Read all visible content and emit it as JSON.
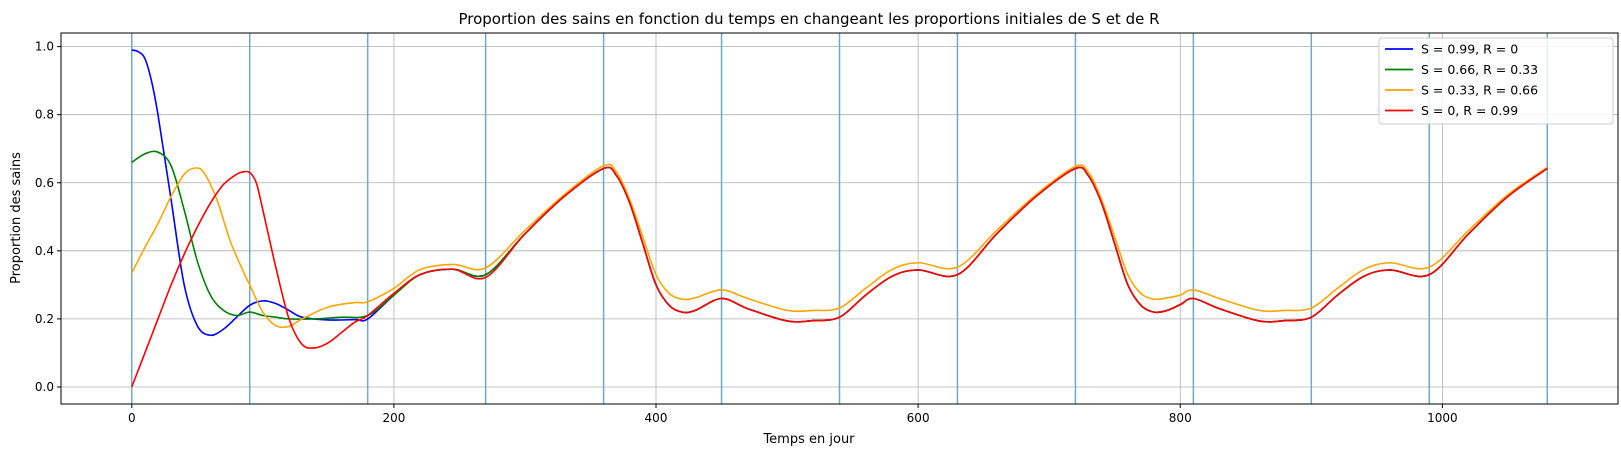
{
  "chart_data": {
    "type": "line",
    "title": "Proportion des sains en fonction du temps en changeant les proportions initiales de S et de R",
    "xlabel": "Temps en jour",
    "ylabel": "Proportion des sains",
    "xlim": [
      -54,
      1134
    ],
    "ylim": [
      -0.05,
      1.04
    ],
    "xticks": [
      0,
      200,
      400,
      600,
      800,
      1000
    ],
    "yticks": [
      0.0,
      0.2,
      0.4,
      0.6,
      0.8,
      1.0
    ],
    "xtick_labels": [
      "0",
      "200",
      "400",
      "600",
      "800",
      "1000"
    ],
    "ytick_labels": [
      "0.0",
      "0.2",
      "0.4",
      "0.6",
      "0.8",
      "1.0"
    ],
    "vlines": [
      0,
      90,
      180,
      270,
      360,
      450,
      540,
      630,
      720,
      810,
      900,
      990,
      1080
    ],
    "vline_color": "#6fa8cc",
    "grid": true,
    "legend_position": "upper right",
    "series": [
      {
        "name": "S = 0.99, R = 0",
        "color": "#0000ff",
        "x": [
          0,
          5,
          10,
          15,
          20,
          30,
          40,
          50,
          60,
          70,
          80,
          90,
          100,
          110,
          120,
          130,
          150,
          170,
          180,
          200,
          220,
          245,
          270,
          300,
          330,
          360,
          370,
          380,
          390,
          400,
          410,
          420,
          430,
          450,
          470,
          500,
          520,
          540,
          560,
          580,
          600,
          630,
          660,
          690,
          720,
          730,
          740,
          750,
          760,
          770,
          780,
          790,
          800,
          810,
          830,
          860,
          880,
          900,
          920,
          940,
          960,
          990,
          1020,
          1050,
          1080
        ],
        "y": [
          0.99,
          0.985,
          0.965,
          0.9,
          0.8,
          0.55,
          0.3,
          0.18,
          0.152,
          0.17,
          0.205,
          0.24,
          0.253,
          0.245,
          0.225,
          0.205,
          0.197,
          0.198,
          0.2,
          0.27,
          0.33,
          0.346,
          0.33,
          0.45,
          0.56,
          0.642,
          0.62,
          0.54,
          0.42,
          0.3,
          0.24,
          0.22,
          0.225,
          0.26,
          0.23,
          0.194,
          0.195,
          0.205,
          0.27,
          0.325,
          0.344,
          0.33,
          0.45,
          0.56,
          0.642,
          0.62,
          0.54,
          0.42,
          0.3,
          0.24,
          0.22,
          0.225,
          0.242,
          0.26,
          0.23,
          0.194,
          0.195,
          0.205,
          0.27,
          0.325,
          0.344,
          0.33,
          0.45,
          0.56,
          0.642
        ]
      },
      {
        "name": "S = 0.66, R = 0.33",
        "color": "#008000",
        "x": [
          0,
          10,
          20,
          30,
          40,
          50,
          60,
          70,
          80,
          90,
          100,
          110,
          120,
          140,
          160,
          180,
          200,
          220,
          245,
          270,
          300,
          330,
          360,
          370,
          380,
          390,
          400,
          410,
          420,
          430,
          450,
          470,
          500,
          520,
          540,
          560,
          580,
          600,
          630,
          660,
          690,
          720,
          730,
          740,
          750,
          760,
          770,
          780,
          790,
          800,
          810,
          830,
          860,
          880,
          900,
          920,
          940,
          960,
          990,
          1020,
          1050,
          1080
        ],
        "y": [
          0.66,
          0.685,
          0.69,
          0.65,
          0.52,
          0.37,
          0.27,
          0.225,
          0.21,
          0.22,
          0.21,
          0.205,
          0.2,
          0.2,
          0.205,
          0.21,
          0.27,
          0.33,
          0.346,
          0.33,
          0.45,
          0.56,
          0.642,
          0.62,
          0.54,
          0.42,
          0.3,
          0.24,
          0.22,
          0.225,
          0.26,
          0.23,
          0.194,
          0.195,
          0.205,
          0.27,
          0.325,
          0.344,
          0.33,
          0.45,
          0.56,
          0.642,
          0.62,
          0.54,
          0.42,
          0.3,
          0.24,
          0.22,
          0.225,
          0.242,
          0.26,
          0.23,
          0.194,
          0.195,
          0.205,
          0.27,
          0.325,
          0.344,
          0.33,
          0.45,
          0.56,
          0.642
        ]
      },
      {
        "name": "S = 0.33, R = 0.66",
        "color": "#ffa500",
        "x": [
          0,
          10,
          20,
          30,
          40,
          48,
          55,
          65,
          75,
          85,
          90,
          100,
          110,
          120,
          130,
          150,
          170,
          180,
          200,
          220,
          245,
          270,
          300,
          330,
          360,
          370,
          380,
          390,
          400,
          410,
          420,
          430,
          450,
          470,
          500,
          520,
          540,
          560,
          580,
          600,
          630,
          660,
          690,
          720,
          730,
          740,
          750,
          760,
          770,
          780,
          790,
          800,
          810,
          830,
          860,
          880,
          900,
          920,
          940,
          960,
          990,
          1020,
          1050,
          1080
        ],
        "y": [
          0.335,
          0.41,
          0.48,
          0.56,
          0.625,
          0.643,
          0.63,
          0.55,
          0.43,
          0.34,
          0.3,
          0.22,
          0.18,
          0.178,
          0.2,
          0.235,
          0.248,
          0.25,
          0.29,
          0.345,
          0.36,
          0.35,
          0.46,
          0.565,
          0.65,
          0.63,
          0.55,
          0.44,
          0.33,
          0.275,
          0.258,
          0.262,
          0.285,
          0.26,
          0.225,
          0.225,
          0.232,
          0.29,
          0.345,
          0.365,
          0.352,
          0.46,
          0.565,
          0.648,
          0.63,
          0.55,
          0.44,
          0.33,
          0.275,
          0.258,
          0.262,
          0.27,
          0.285,
          0.26,
          0.225,
          0.225,
          0.232,
          0.29,
          0.345,
          0.365,
          0.352,
          0.46,
          0.565,
          0.645
        ]
      },
      {
        "name": "S = 0, R = 0.99",
        "color": "#ff0000",
        "x": [
          0,
          10,
          20,
          30,
          40,
          50,
          60,
          70,
          80,
          85,
          90,
          95,
          100,
          110,
          120,
          130,
          140,
          150,
          160,
          170,
          180,
          200,
          220,
          245,
          270,
          300,
          330,
          360,
          370,
          380,
          390,
          400,
          410,
          420,
          430,
          450,
          470,
          500,
          520,
          540,
          560,
          580,
          600,
          630,
          660,
          690,
          720,
          730,
          740,
          750,
          760,
          770,
          780,
          790,
          800,
          810,
          830,
          860,
          880,
          900,
          920,
          940,
          960,
          990,
          1020,
          1050,
          1080
        ],
        "y": [
          0.0,
          0.1,
          0.2,
          0.3,
          0.39,
          0.47,
          0.54,
          0.595,
          0.625,
          0.632,
          0.63,
          0.6,
          0.52,
          0.35,
          0.2,
          0.125,
          0.115,
          0.13,
          0.16,
          0.19,
          0.21,
          0.275,
          0.33,
          0.346,
          0.322,
          0.45,
          0.56,
          0.642,
          0.62,
          0.54,
          0.42,
          0.3,
          0.24,
          0.22,
          0.225,
          0.26,
          0.23,
          0.194,
          0.195,
          0.205,
          0.27,
          0.325,
          0.344,
          0.33,
          0.45,
          0.56,
          0.642,
          0.62,
          0.54,
          0.42,
          0.3,
          0.24,
          0.22,
          0.225,
          0.242,
          0.26,
          0.23,
          0.194,
          0.195,
          0.205,
          0.27,
          0.325,
          0.344,
          0.33,
          0.45,
          0.56,
          0.642
        ]
      }
    ]
  }
}
